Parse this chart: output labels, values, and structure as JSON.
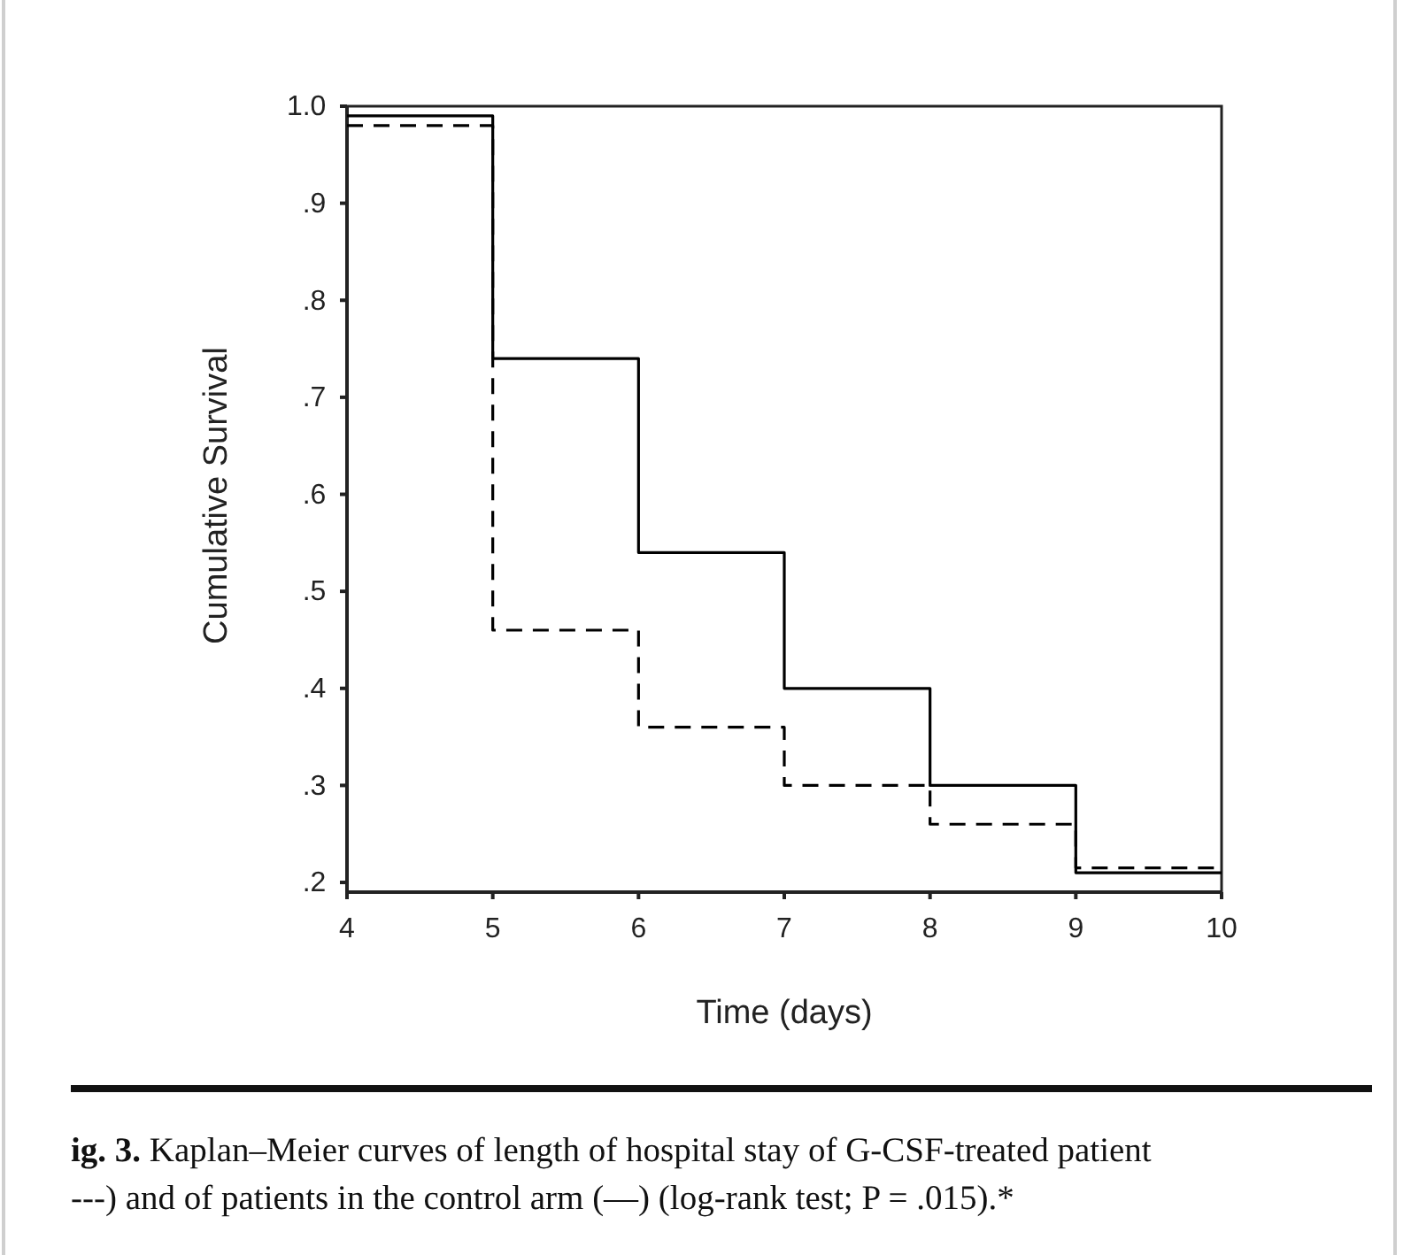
{
  "chart_data": {
    "type": "step",
    "xlabel": "Time (days)",
    "ylabel": "Cumulative Survival",
    "x": [
      4,
      5,
      6,
      7,
      8,
      9,
      10
    ],
    "series": [
      {
        "color": "#000000",
        "line_style": "solid",
        "values": [
          0.99,
          0.74,
          0.54,
          0.4,
          0.3,
          0.21,
          0.21
        ]
      },
      {
        "color": "#000000",
        "line_style": "dashed",
        "values": [
          0.98,
          0.46,
          0.36,
          0.3,
          0.26,
          0.215,
          0.215
        ]
      }
    ],
    "xlim": [
      4,
      10
    ],
    "xticks": [
      4,
      5,
      6,
      7,
      8,
      9,
      10
    ],
    "ylim": [
      0.19,
      1.0
    ],
    "yticks": [
      {
        "value": 0.2,
        "label": ".2"
      },
      {
        "value": 0.3,
        "label": ".3"
      },
      {
        "value": 0.4,
        "label": ".4"
      },
      {
        "value": 0.5,
        "label": ".5"
      },
      {
        "value": 0.6,
        "label": ".6"
      },
      {
        "value": 0.7,
        "label": ".7"
      },
      {
        "value": 0.8,
        "label": ".8"
      },
      {
        "value": 0.9,
        "label": ".9"
      },
      {
        "value": 1.0,
        "label": "1.0"
      }
    ],
    "annotations": [
      "ig. 3.",
      "Kaplan–Meier curves of length of hospital stay of G-CSF-treated patient",
      "---) and of patients in the control arm (—) (log-rank test; P = .015).*"
    ]
  }
}
